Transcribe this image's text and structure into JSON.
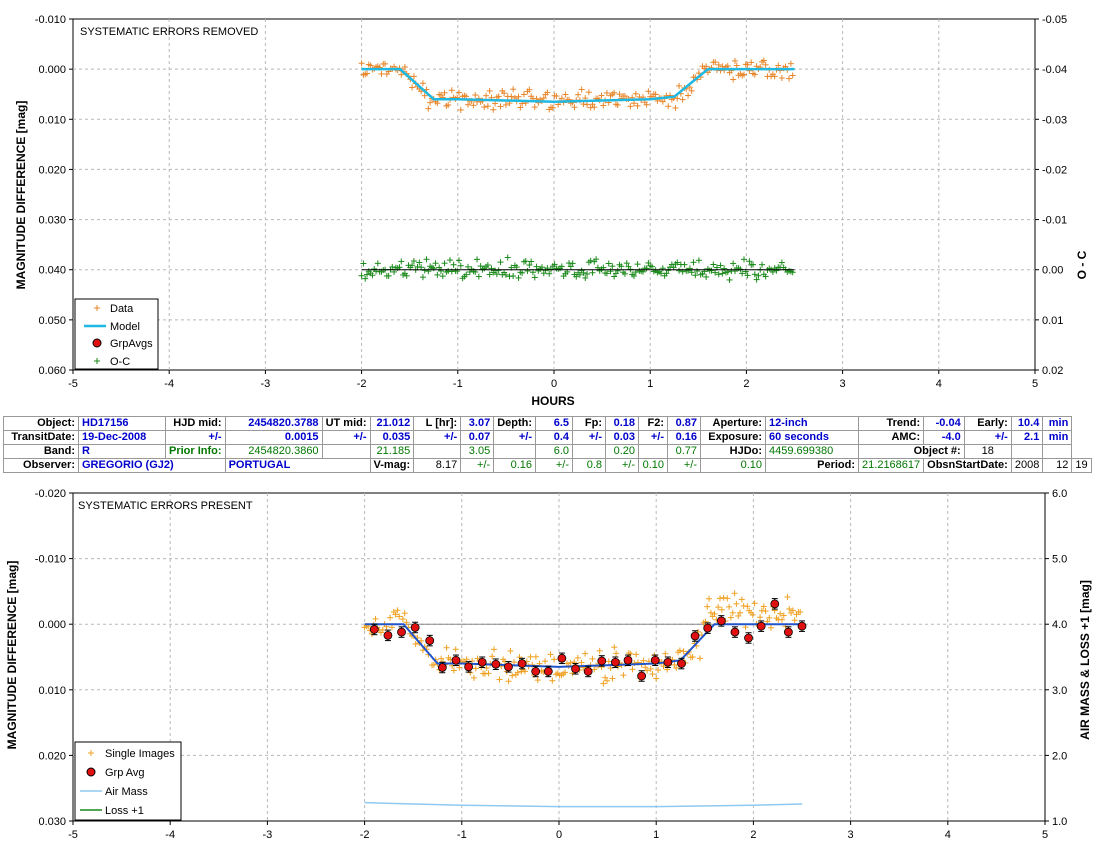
{
  "top_panel": {
    "title": "SYSTEMATIC ERRORS REMOVED",
    "ylabel": "MAGNITUDE DIFFERENCE [mag]",
    "y2label": "O - C",
    "xlabel": "HOURS",
    "x_ticks": [
      "-5",
      "-4",
      "-3",
      "-2",
      "-1",
      "0",
      "1",
      "2",
      "3",
      "4",
      "5"
    ],
    "y_ticks": [
      "-0.010",
      "0.000",
      "0.010",
      "0.020",
      "0.030",
      "0.040",
      "0.050",
      "0.060"
    ],
    "y2_ticks": [
      "-0.05",
      "-0.04",
      "-0.03",
      "-0.02",
      "-0.01",
      "0.00",
      "0.01",
      "0.02"
    ],
    "legend": [
      "Data",
      "Model",
      "GrpAvgs",
      "O-C"
    ]
  },
  "bottom_panel": {
    "title": "SYSTEMATIC ERRORS PRESENT",
    "ylabel": "MAGNITUDE DIFFERENCE [mag]",
    "y2label": "AIR MASS & LOSS +1 [mag]",
    "x_ticks": [
      "-5",
      "-4",
      "-3",
      "-2",
      "-1",
      "0",
      "1",
      "2",
      "3",
      "4",
      "5"
    ],
    "y_ticks": [
      "-0.020",
      "-0.010",
      "0.000",
      "0.010",
      "0.020",
      "0.030"
    ],
    "y2_ticks": [
      "6.0",
      "5.0",
      "4.0",
      "3.0",
      "2.0",
      "1.0"
    ],
    "legend": [
      "Single Images",
      "Grp Avg",
      "Air Mass",
      "Loss +1"
    ]
  },
  "info": {
    "r1": {
      "object_label": "Object:",
      "object": "HD17156",
      "hjd_label": "HJD mid:",
      "hjd": "2454820.3788",
      "ut_label": "UT mid:",
      "ut": "21.012",
      "l_label": "L [hr]:",
      "l": "3.07",
      "depth_label": "Depth:",
      "depth": "6.5",
      "fp_label": "Fp:",
      "fp": "0.18",
      "f2_label": "F2:",
      "f2": "0.87",
      "aperture_label": "Aperture:",
      "aperture": "12-inch",
      "trend_label": "Trend:",
      "trend": "-0.04",
      "early_label": "Early:",
      "early": "10.4",
      "early_unit": "min"
    },
    "r2": {
      "date_label": "TransitDate:",
      "date": "19-Dec-2008",
      "pm1": "+/-",
      "hjd_err": "0.0015",
      "pm2": "+/-",
      "ut_err": "0.035",
      "pm3": "+/-",
      "l_err": "0.07",
      "pm4": "+/-",
      "depth_err": "0.4",
      "pm5": "+/-",
      "fp_err": "0.03",
      "pm6": "+/-",
      "f2_err": "0.16",
      "exposure_label": "Exposure:",
      "exposure": "60 seconds",
      "amc_label": "AMC:",
      "amc": "-4.0",
      "pm7": "+/-",
      "early_err": "2.1",
      "early_err_unit": "min"
    },
    "r3": {
      "band_label": "Band:",
      "band": "R",
      "prior_label": "Prior Info:",
      "prior_hjd": "2454820.3860",
      "prior_ut": "21.185",
      "prior_l": "3.05",
      "prior_depth": "6.0",
      "prior_fp": "0.20",
      "prior_f2": "0.77",
      "hjdo_label": "HJDo:",
      "hjdo": "4459.699380",
      "objnum_label": "Object #:",
      "objnum": "18"
    },
    "r4": {
      "observer_label": "Observer:",
      "observer": "GREGORIO (GJ2)",
      "country": "PORTUGAL",
      "vmag_label": "V-mag:",
      "vmag": "8.17",
      "pm1": "+/-",
      "vmag_err": "0.16",
      "pm2": "+/-",
      "v2_err": "0.8",
      "pm3": "+/-",
      "v3_err": "0.10",
      "pm4": "+/-",
      "v4_err": "0.10",
      "period_label": "Period:",
      "period": "21.2168617",
      "obs_label": "ObsnStartDate:",
      "obs_year": "2008",
      "obs_month": "12",
      "obs_day": "19"
    }
  },
  "chart_data": [
    {
      "type": "scatter",
      "title": "SYSTEMATIC ERRORS REMOVED",
      "xlabel": "HOURS",
      "ylabel": "MAGNITUDE DIFFERENCE [mag]",
      "y2label": "O - C",
      "xlim": [
        -5,
        5
      ],
      "ylim": [
        -0.01,
        0.06
      ],
      "y_inverted": true,
      "y2lim": [
        -0.05,
        0.02
      ],
      "legend_position": "bottom-left",
      "grid": true,
      "model": {
        "name": "Model",
        "x": [
          -2.0,
          -1.6,
          -1.25,
          -1.0,
          0.0,
          1.0,
          1.25,
          1.6,
          2.5
        ],
        "y": [
          0.0,
          0.0,
          0.006,
          0.006,
          0.0065,
          0.006,
          0.0055,
          0.0,
          0.0
        ]
      },
      "oc_zero_level": 0.04,
      "series": [
        {
          "name": "Data",
          "marker": "plus",
          "color": "#e8862a"
        },
        {
          "name": "O-C",
          "marker": "plus",
          "color": "#1a8a1a"
        }
      ]
    },
    {
      "type": "scatter",
      "title": "SYSTEMATIC ERRORS PRESENT",
      "ylabel": "MAGNITUDE DIFFERENCE [mag]",
      "y2label": "AIR MASS & LOSS +1 [mag]",
      "xlim": [
        -5,
        5
      ],
      "ylim": [
        -0.02,
        0.03
      ],
      "y_inverted": true,
      "y2lim": [
        1.0,
        6.0
      ],
      "legend_position": "bottom-left",
      "grid": true,
      "grp_avg": {
        "name": "Grp Avg",
        "x": [
          -1.9,
          -1.76,
          -1.62,
          -1.48,
          -1.33,
          -1.2,
          -1.06,
          -0.93,
          -0.79,
          -0.65,
          -0.52,
          -0.38,
          -0.24,
          -0.11,
          0.03,
          0.17,
          0.3,
          0.44,
          0.58,
          0.71,
          0.85,
          0.99,
          1.12,
          1.26,
          1.4,
          1.53,
          1.67,
          1.81,
          1.95,
          2.08,
          2.22,
          2.36,
          2.5
        ],
        "y": [
          0.0008,
          0.0017,
          0.0012,
          0.0005,
          0.0025,
          0.0066,
          0.0055,
          0.0065,
          0.0058,
          0.0061,
          0.0065,
          0.006,
          0.0072,
          0.0072,
          0.0052,
          0.0068,
          0.0072,
          0.0056,
          0.0058,
          0.0055,
          0.0079,
          0.0055,
          0.0058,
          0.006,
          0.0018,
          0.0006,
          -0.0005,
          0.0012,
          0.0021,
          0.0003,
          -0.0031,
          0.0012,
          0.0003
        ],
        "err": 0.0008
      },
      "model": {
        "name": "Model",
        "x": [
          -2.0,
          -1.6,
          -1.25,
          -1.0,
          0.0,
          1.0,
          1.25,
          1.6,
          2.5
        ],
        "y": [
          0.0,
          0.0,
          0.006,
          0.006,
          0.0065,
          0.006,
          0.0055,
          0.0,
          0.0
        ]
      },
      "air_mass": {
        "name": "Air Mass",
        "x": [
          -2.0,
          -1.0,
          0.0,
          1.0,
          2.0,
          2.5
        ],
        "y": [
          1.28,
          1.24,
          1.22,
          1.22,
          1.24,
          1.26
        ]
      },
      "series": [
        {
          "name": "Single Images",
          "marker": "plus",
          "color": "#f0a020"
        },
        {
          "name": "Loss +1",
          "color": "#1a8a1a"
        }
      ]
    }
  ],
  "colors": {
    "data_orange": "#e8862a",
    "single_orange": "#f0a020",
    "oc_green": "#1a8a1a",
    "model_cyan": "#1fb8e0",
    "model_blue": "#2255cc",
    "grp_red": "#e01010",
    "air_mass": "#8fc8f0",
    "grid": "#b8b8b8"
  }
}
